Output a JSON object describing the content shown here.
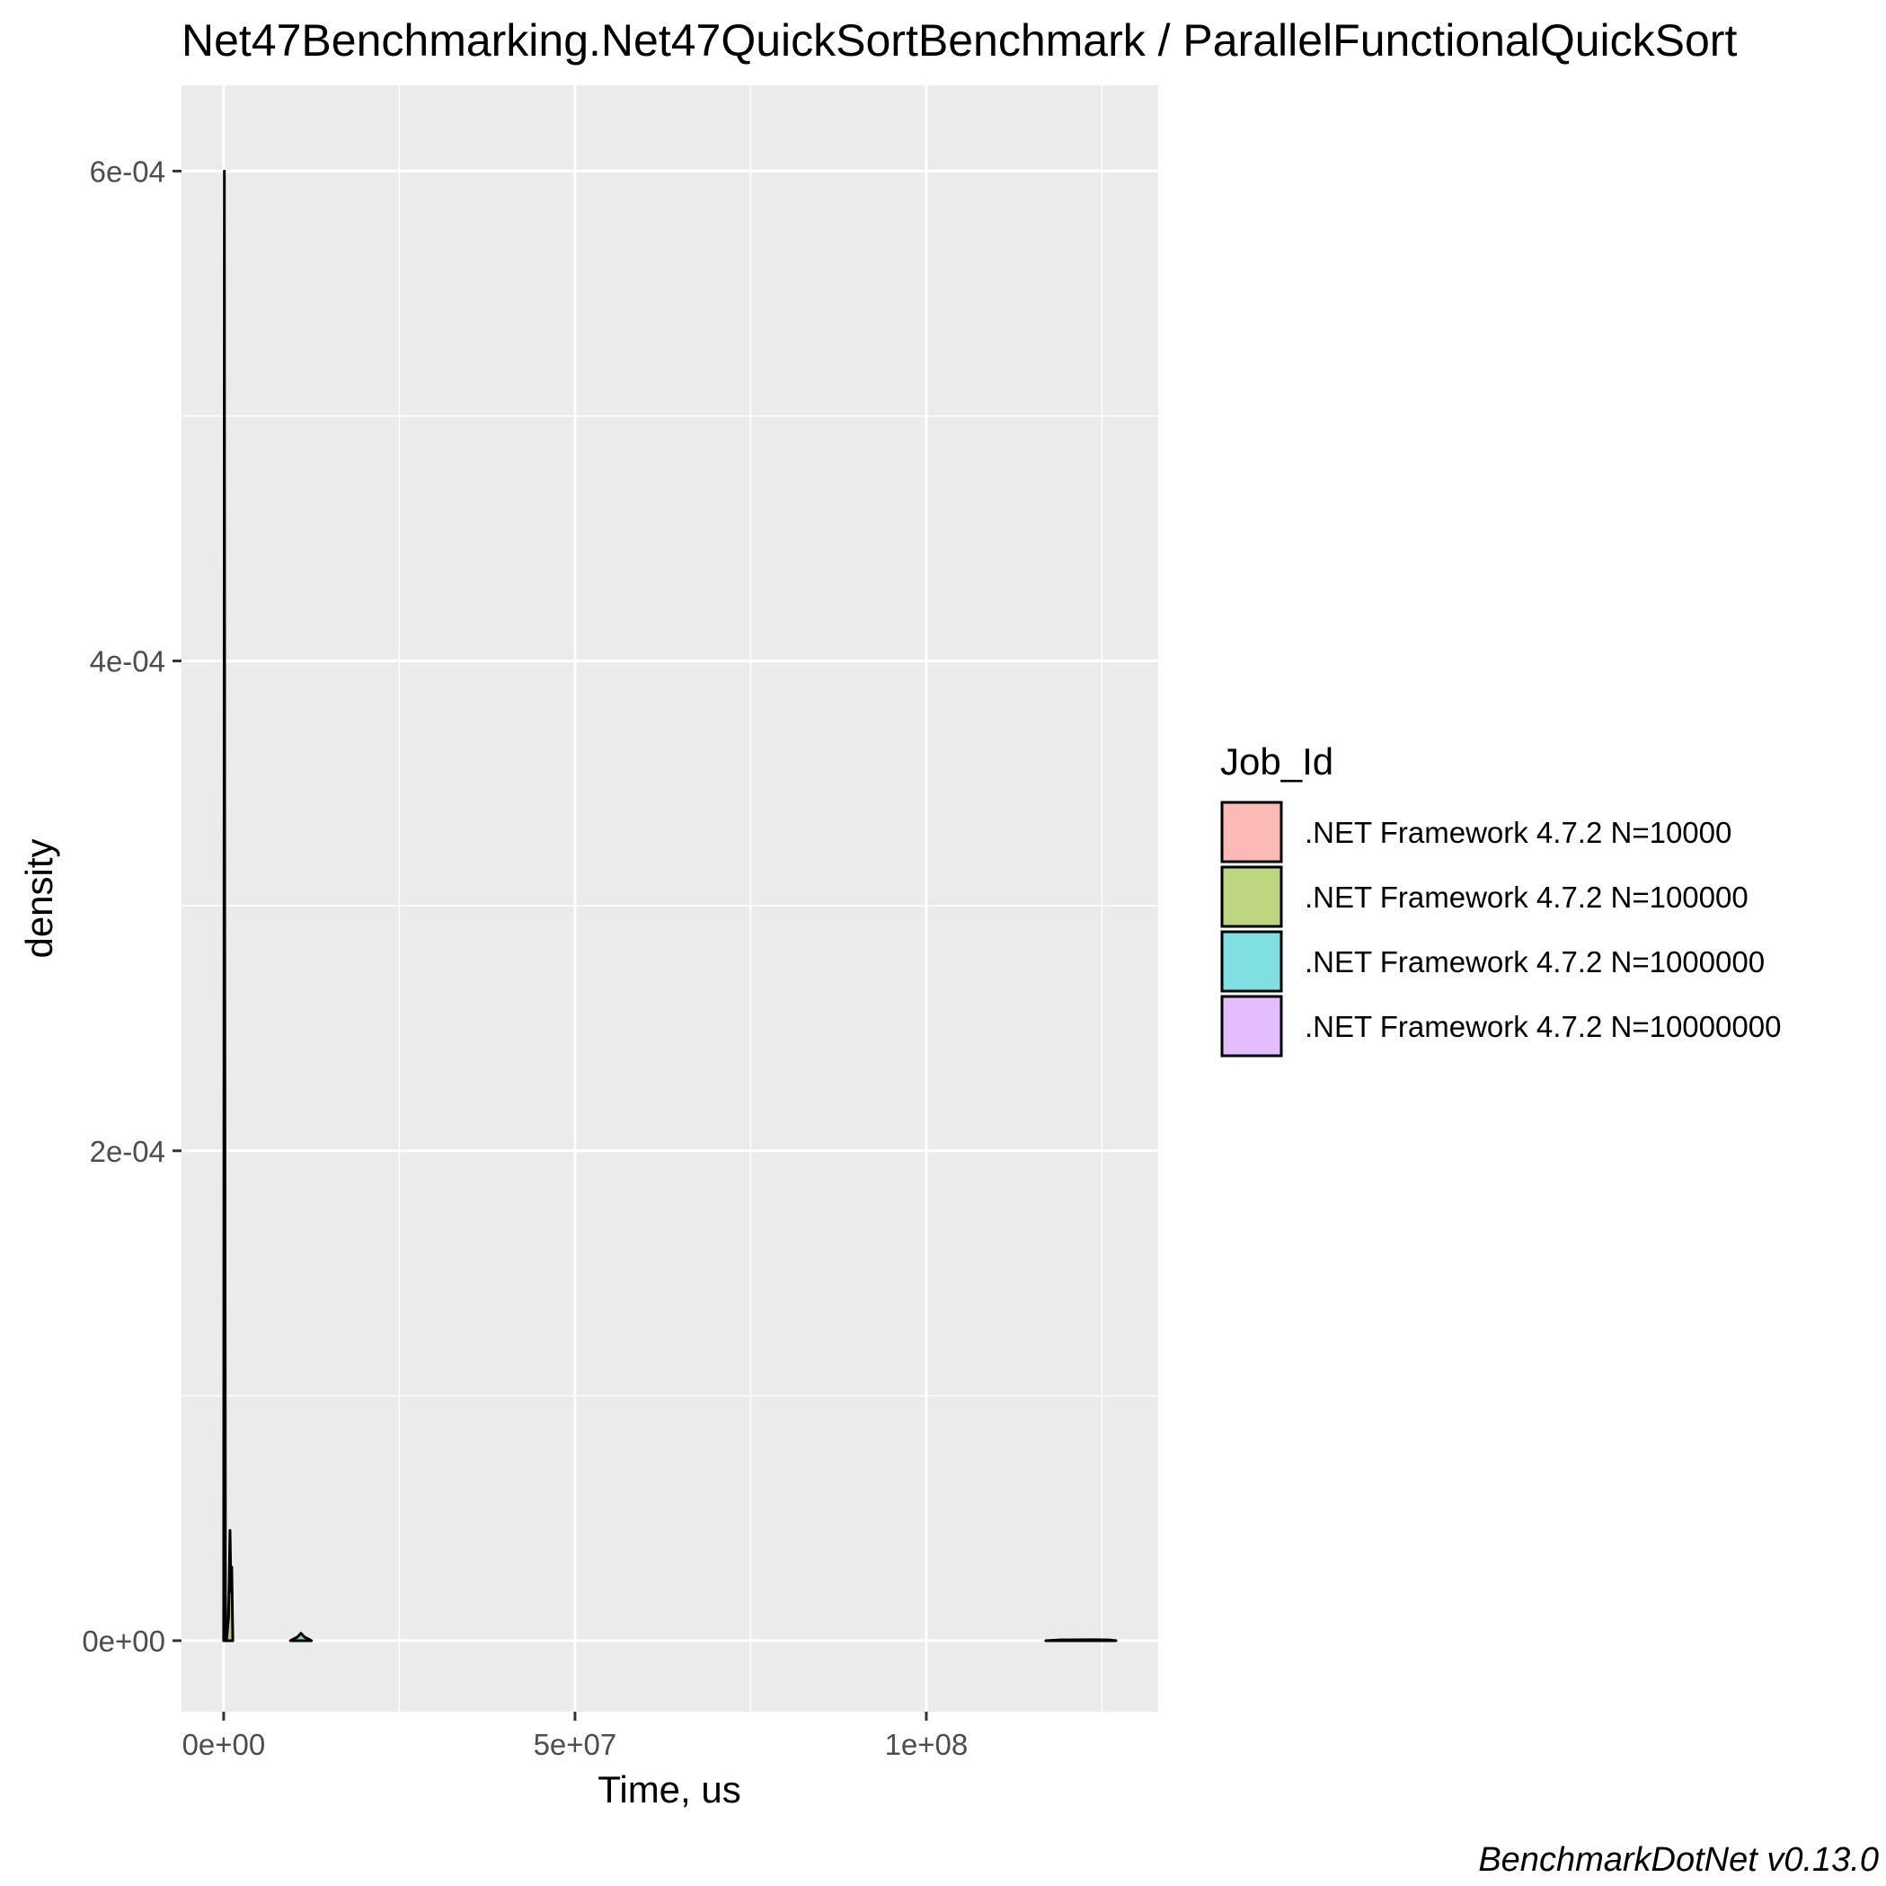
{
  "chart_data": {
    "type": "area",
    "title": "Net47Benchmarking.Net47QuickSortBenchmark / ParallelFunctionalQuickSort",
    "xlabel": "Time, us",
    "ylabel": "density",
    "caption": "BenchmarkDotNet v0.13.0",
    "xlim": [
      -6000000,
      133000000
    ],
    "ylim": [
      -2.9e-05,
      0.000635
    ],
    "x_ticks": [
      {
        "value": 0,
        "label": "0e+00"
      },
      {
        "value": 50000000,
        "label": "5e+07"
      },
      {
        "value": 100000000,
        "label": "1e+08"
      }
    ],
    "y_ticks": [
      {
        "value": 0,
        "label": "0e+00"
      },
      {
        "value": 0.0002,
        "label": "2e-04"
      },
      {
        "value": 0.0004,
        "label": "4e-04"
      },
      {
        "value": 0.0006,
        "label": "6e-04"
      }
    ],
    "grid": true,
    "legend": {
      "title": "Job_Id",
      "position": "right",
      "entries": [
        {
          "label": ".NET Framework 4.7.2 N=10000",
          "color": "#F8766D"
        },
        {
          "label": ".NET Framework 4.7.2 N=100000",
          "color": "#7CAE00"
        },
        {
          "label": ".NET Framework 4.7.2 N=1000000",
          "color": "#00BFC4"
        },
        {
          "label": ".NET Framework 4.7.2 N=10000000",
          "color": "#C77CFF"
        }
      ]
    },
    "series": [
      {
        "name": ".NET Framework 4.7.2 N=10000",
        "color": "#F8766D",
        "points": [
          [
            0,
            0
          ],
          [
            100000,
            0.0006
          ],
          [
            150000,
            0.0003
          ],
          [
            250000,
            2e-05
          ],
          [
            350000,
            0
          ]
        ]
      },
      {
        "name": ".NET Framework 4.7.2 N=100000",
        "color": "#7CAE00",
        "points": [
          [
            400000,
            0
          ],
          [
            700000,
            1e-05
          ],
          [
            900000,
            4.5e-05
          ],
          [
            1050000,
            2e-05
          ],
          [
            1150000,
            3e-05
          ],
          [
            1300000,
            0
          ]
        ]
      },
      {
        "name": ".NET Framework 4.7.2 N=1000000",
        "color": "#00BFC4",
        "points": [
          [
            9500000,
            0
          ],
          [
            10500000,
            1.5e-06
          ],
          [
            11000000,
            3e-06
          ],
          [
            11500000,
            1.5e-06
          ],
          [
            12500000,
            0
          ]
        ]
      },
      {
        "name": ".NET Framework 4.7.2 N=10000000",
        "color": "#C77CFF",
        "points": [
          [
            117000000,
            0
          ],
          [
            119000000,
            3e-07
          ],
          [
            124000000,
            4e-07
          ],
          [
            126000000,
            3e-07
          ],
          [
            127000000,
            0
          ]
        ]
      }
    ]
  }
}
